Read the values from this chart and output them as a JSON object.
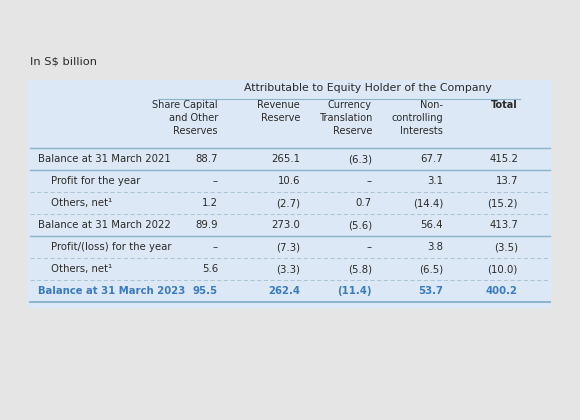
{
  "title": "In S$ billion",
  "group_header": "Attributable to Equity Holder of the Company",
  "col_headers": [
    "Share Capital\nand Other\nReserves",
    "Revenue\nReserve",
    "Currency\nTranslation\nReserve",
    "Non-\ncontrolling\nInterests",
    "Total"
  ],
  "rows": [
    {
      "label": "Balance at 31 March 2021",
      "indent": false,
      "values": [
        "88.7",
        "265.1",
        "(6.3)",
        "67.7",
        "415.2"
      ],
      "bold": false,
      "blue": false,
      "balance": true
    },
    {
      "label": "Profit for the year",
      "indent": true,
      "values": [
        "–",
        "10.6",
        "–",
        "3.1",
        "13.7"
      ],
      "bold": false,
      "blue": false,
      "balance": false
    },
    {
      "label": "Others, net¹",
      "indent": true,
      "values": [
        "1.2",
        "(2.7)",
        "0.7",
        "(14.4)",
        "(15.2)"
      ],
      "bold": false,
      "blue": false,
      "balance": false
    },
    {
      "label": "Balance at 31 March 2022",
      "indent": false,
      "values": [
        "89.9",
        "273.0",
        "(5.6)",
        "56.4",
        "413.7"
      ],
      "bold": false,
      "blue": false,
      "balance": true
    },
    {
      "label": "Profit/(loss) for the year",
      "indent": true,
      "values": [
        "–",
        "(7.3)",
        "–",
        "3.8",
        "(3.5)"
      ],
      "bold": false,
      "blue": false,
      "balance": false
    },
    {
      "label": "Others, net¹",
      "indent": true,
      "values": [
        "5.6",
        "(3.3)",
        "(5.8)",
        "(6.5)",
        "(10.0)"
      ],
      "bold": false,
      "blue": false,
      "balance": false
    },
    {
      "label": "Balance at 31 March 2023",
      "indent": false,
      "values": [
        "95.5",
        "262.4",
        "(11.4)",
        "53.7",
        "400.2"
      ],
      "bold": true,
      "blue": true,
      "balance": true
    }
  ],
  "bg_color": "#dce8f5",
  "outer_bg": "#e5e5e5",
  "blue_text": "#3a7bbf",
  "header_text": "#2a2a2a",
  "body_text": "#2a2a2a",
  "solid_line_color": "#8ab4cc",
  "dashed_line_color": "#a0bece"
}
